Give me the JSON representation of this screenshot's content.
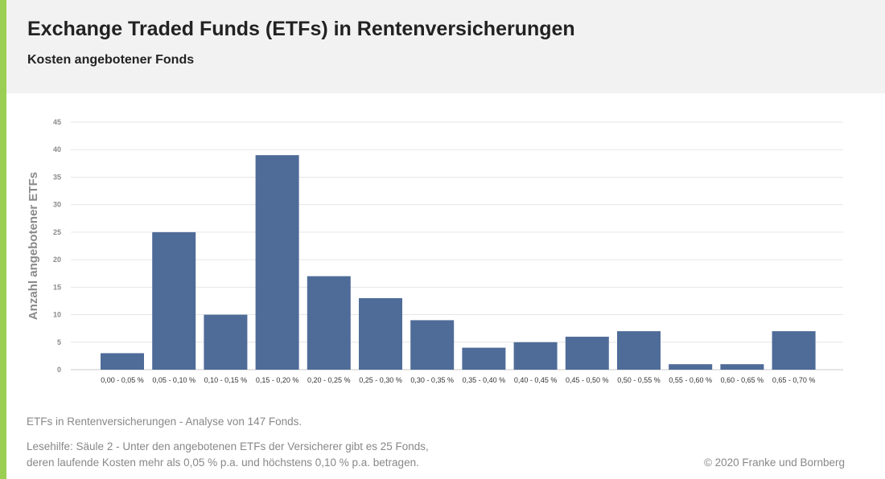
{
  "header": {
    "title": "Exchange Traded Funds (ETFs) in Rentenversicherungen",
    "subtitle": "Kosten angebotener Fonds"
  },
  "footer": {
    "analysis": "ETFs in Rentenversicherungen - Analyse von 147 Fonds.",
    "help_line1": "Lesehilfe: Säule 2 - Unter den angebotenen ETFs der Versicherer gibt es 25 Fonds,",
    "help_line2": "deren laufende Kosten mehr als 0,05 % p.a. und höchstens 0,10 % p.a. betragen.",
    "copyright": "© 2020 Franke und Bornberg"
  },
  "colors": {
    "bar": "#4f6c98",
    "accent": "#9bcf53",
    "header_bg": "#f2f2f2"
  },
  "chart_data": {
    "type": "bar",
    "categories": [
      "0,00 - 0,05 %",
      "0,05 - 0,10 %",
      "0,10 - 0,15 %",
      "0,15 - 0,20 %",
      "0,20 - 0,25 %",
      "0,25 - 0,30 %",
      "0,30 - 0,35 %",
      "0,35 - 0,40 %",
      "0,40 - 0,45 %",
      "0,45 - 0,50 %",
      "0,50 - 0,55 %",
      "0,55 - 0,60 %",
      "0,60 - 0,65 %",
      "0,65 - 0,70 %"
    ],
    "values": [
      3,
      25,
      10,
      39,
      17,
      13,
      9,
      4,
      5,
      6,
      7,
      1,
      1,
      7
    ],
    "ylabel": "Anzahl angebotener ETFs",
    "xlabel": "",
    "ylim": [
      0,
      45
    ],
    "yticks": [
      0,
      5,
      10,
      15,
      20,
      25,
      30,
      35,
      40,
      45
    ],
    "grid": true,
    "legend": "none"
  }
}
